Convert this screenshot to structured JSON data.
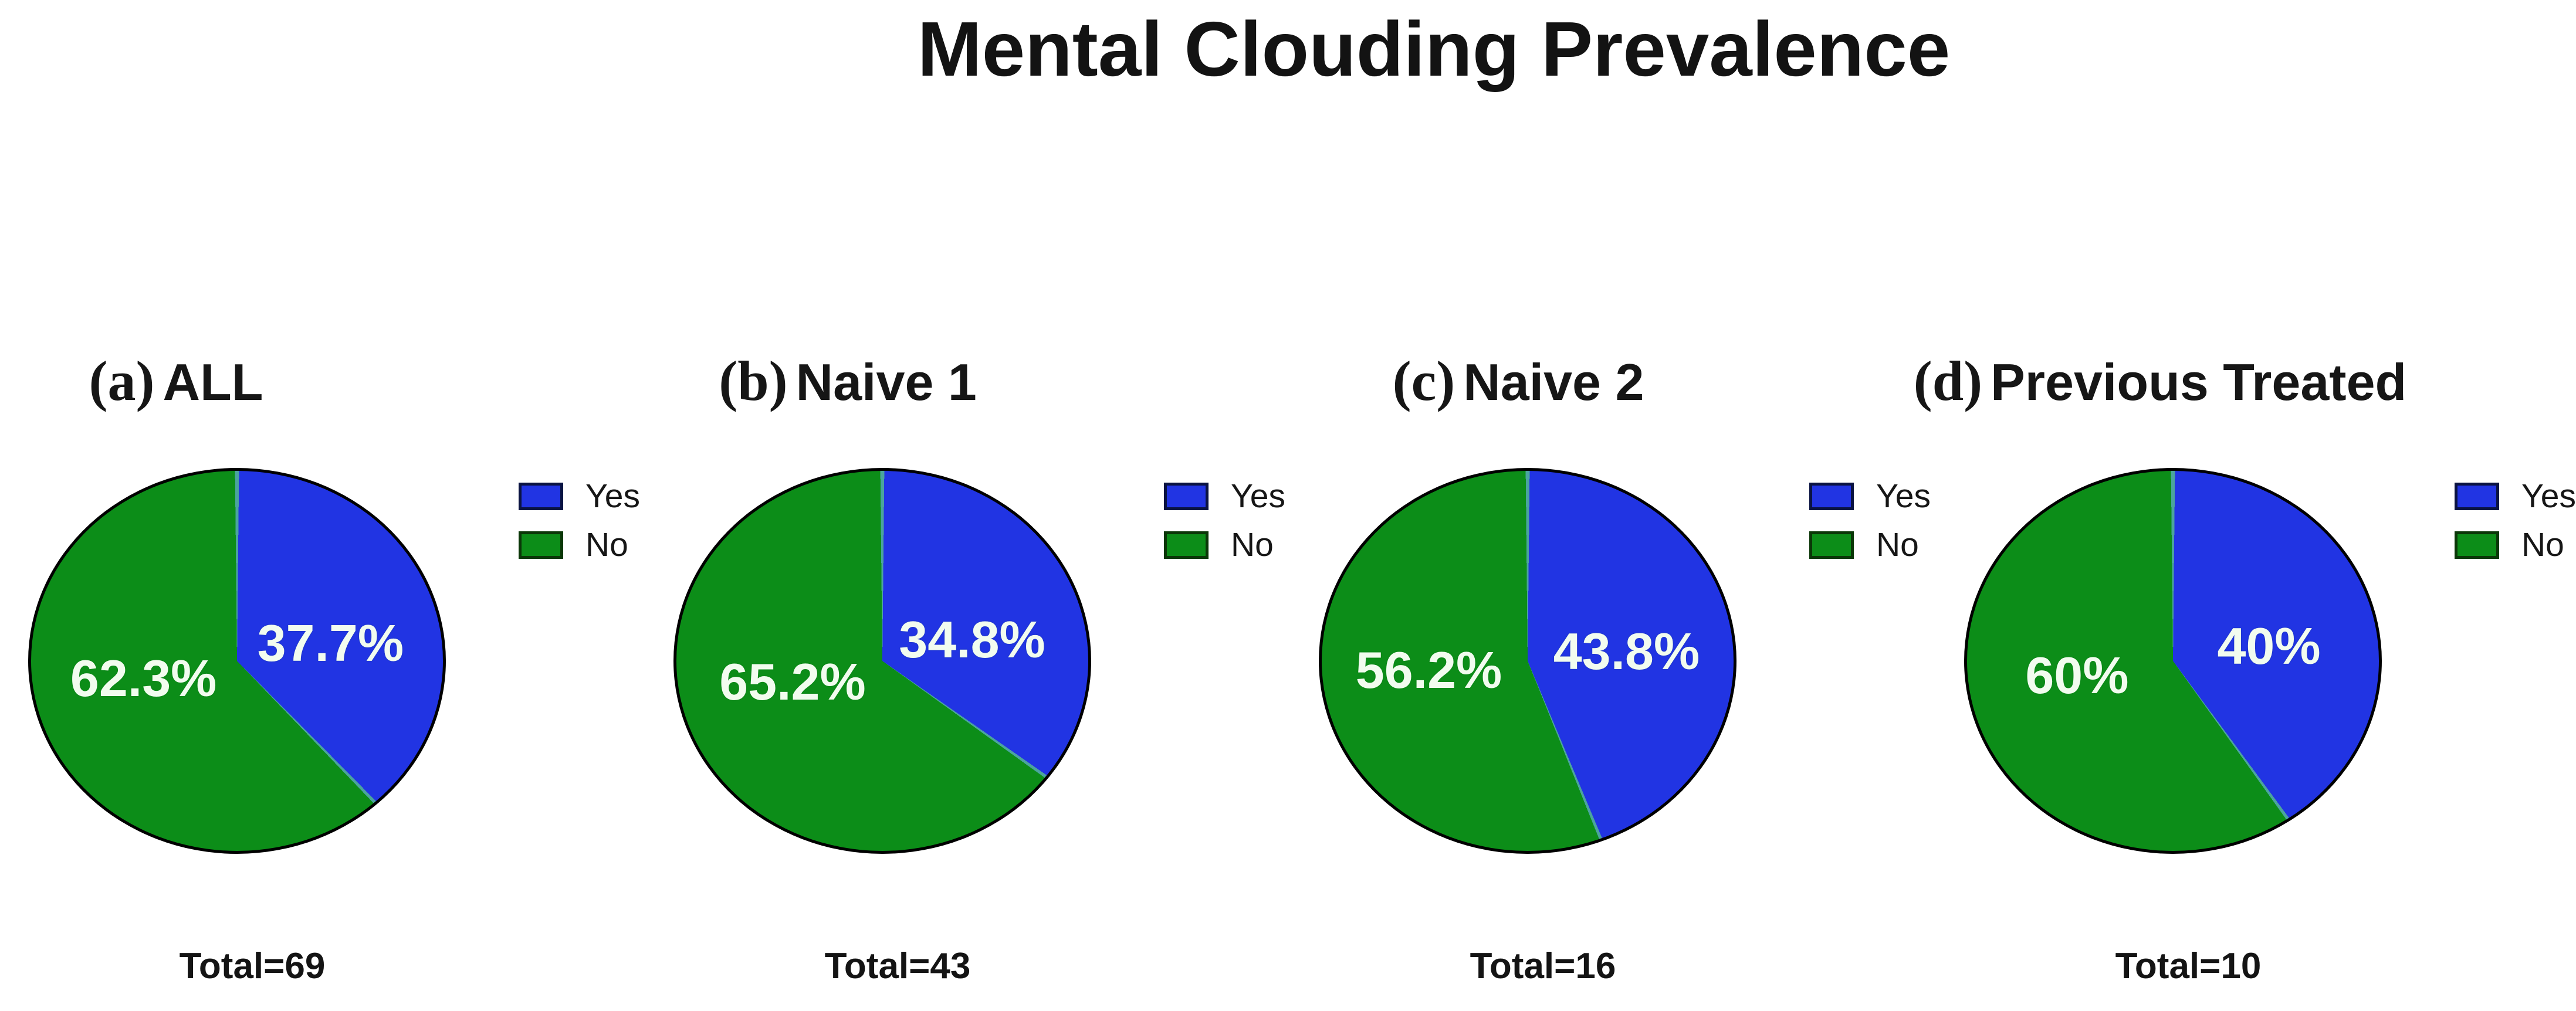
{
  "title": "Mental Clouding Prevalence",
  "legend": {
    "yes": "Yes",
    "no": "No"
  },
  "colors": {
    "yes": "#2134e3",
    "no": "#0c8d18",
    "outline": "#000000",
    "divider": "#4ba49e",
    "slice_label": "#f2fcef",
    "legend_yes_border": "#0a1342",
    "legend_no_border": "#0b3708"
  },
  "chart_data": [
    {
      "type": "pie",
      "panel_letter": "(a)",
      "panel_name": "ALL",
      "categories": [
        "Yes",
        "No"
      ],
      "values": [
        37.7,
        62.3
      ],
      "slice_labels": [
        "37.7%",
        "62.3%"
      ],
      "total_label": "Total=69",
      "legend_entries": [
        "Yes",
        "No"
      ],
      "legend_position": "right"
    },
    {
      "type": "pie",
      "panel_letter": "(b)",
      "panel_name": "Naive 1",
      "categories": [
        "Yes",
        "No"
      ],
      "values": [
        34.8,
        65.2
      ],
      "slice_labels": [
        "34.8%",
        "65.2%"
      ],
      "total_label": "Total=43",
      "legend_entries": [
        "Yes",
        "No"
      ],
      "legend_position": "right"
    },
    {
      "type": "pie",
      "panel_letter": "(c)",
      "panel_name": "Naive 2",
      "categories": [
        "Yes",
        "No"
      ],
      "values": [
        43.8,
        56.2
      ],
      "slice_labels": [
        "43.8%",
        "56.2%"
      ],
      "total_label": "Total=16",
      "legend_entries": [
        "Yes",
        "No"
      ],
      "legend_position": "right"
    },
    {
      "type": "pie",
      "panel_letter": "(d)",
      "panel_name": "Previous Treated",
      "categories": [
        "Yes",
        "No"
      ],
      "values": [
        40,
        60
      ],
      "slice_labels": [
        "40%",
        "60%"
      ],
      "total_label": "Total=10",
      "legend_entries": [
        "Yes",
        "No"
      ],
      "legend_position": "right"
    }
  ]
}
